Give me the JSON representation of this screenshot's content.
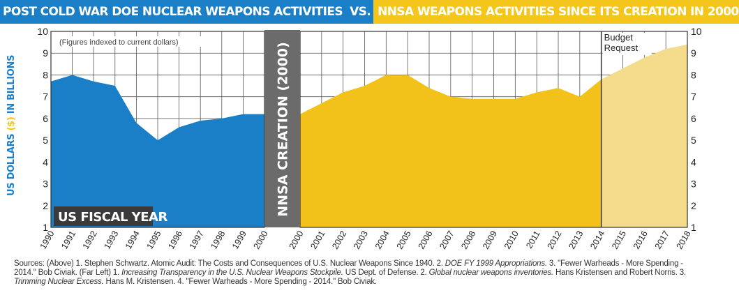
{
  "title": {
    "left": "POST COLD WAR DOE NUCLEAR WEAPONS ACTIVITIES",
    "vs": "VS.",
    "right": "NNSA WEAPONS ACTIVITIES SINCE ITS CREATION IN 2000"
  },
  "ylabel": {
    "part1": "US DOLLARS",
    "part2": "($)",
    "part3": "IN BILLIONS"
  },
  "colors": {
    "doe": "#1b7fc7",
    "nnsa": "#f2c21b",
    "budget": "#f4dc8c",
    "divider": "#6b6b6b",
    "grid": "#555555"
  },
  "chart_data": {
    "type": "area",
    "note": "(Figures indexed to current dollars)",
    "xlabel": "US FISCAL YEAR",
    "ylim": [
      1,
      10
    ],
    "y_ticks": [
      1,
      2,
      3,
      4,
      5,
      6,
      7,
      8,
      9,
      10
    ],
    "divider_label": "NNSA CREATION (2000)",
    "budget_label_line1": "Budget",
    "budget_label_line2": "Request",
    "series": [
      {
        "x": [
          "1990",
          "1991",
          "1992",
          "1993",
          "1994",
          "1995",
          "1996",
          "1997",
          "1998",
          "1999",
          "2000"
        ],
        "values": [
          7.7,
          8.0,
          7.7,
          7.5,
          5.8,
          5.0,
          5.6,
          5.9,
          6.0,
          6.2,
          6.2
        ]
      },
      {
        "x": [
          "2000",
          "2001",
          "2002",
          "2003",
          "2004",
          "2005",
          "2006",
          "2007",
          "2008",
          "2009",
          "2010",
          "2011",
          "2012",
          "2013",
          "2014"
        ],
        "values": [
          6.2,
          6.7,
          7.2,
          7.5,
          8.0,
          8.0,
          7.4,
          7.0,
          6.9,
          6.9,
          6.9,
          7.2,
          7.4,
          7.0,
          7.8
        ]
      },
      {
        "x": [
          "2014",
          "2015",
          "2016",
          "2017",
          "2018"
        ],
        "values": [
          7.8,
          8.3,
          8.8,
          9.2,
          9.4
        ]
      }
    ]
  },
  "sources": {
    "p1": "Sources: (Above) 1. Stephen Schwartz. Atomic Audit: The Costs and Consequences of U.S. Nuclear Weapons Since 1940. 2. ",
    "p1_italic": "DOE FY 1999 Appropriations.",
    "p2": " 3. \"Fewer Warheads - More Spending - 2014.\" Bob Civiak. (Far Left) 1. ",
    "p2_italic": "Increasing Transparency in the U.S. Nuclear Weapons Stockpile.",
    "p3": " US Dept. of Defense. 2. ",
    "p3_italic": "Global nuclear weapons inventories.",
    "p4": " Hans Kristensen and Robert Norris. 3. ",
    "p4_italic": "Trimming Nuclear Excess.",
    "p5": " Hans M. Kristensen. 4. \"Fewer Warheads - More Spending - 2014.\" Bob Civiak."
  }
}
